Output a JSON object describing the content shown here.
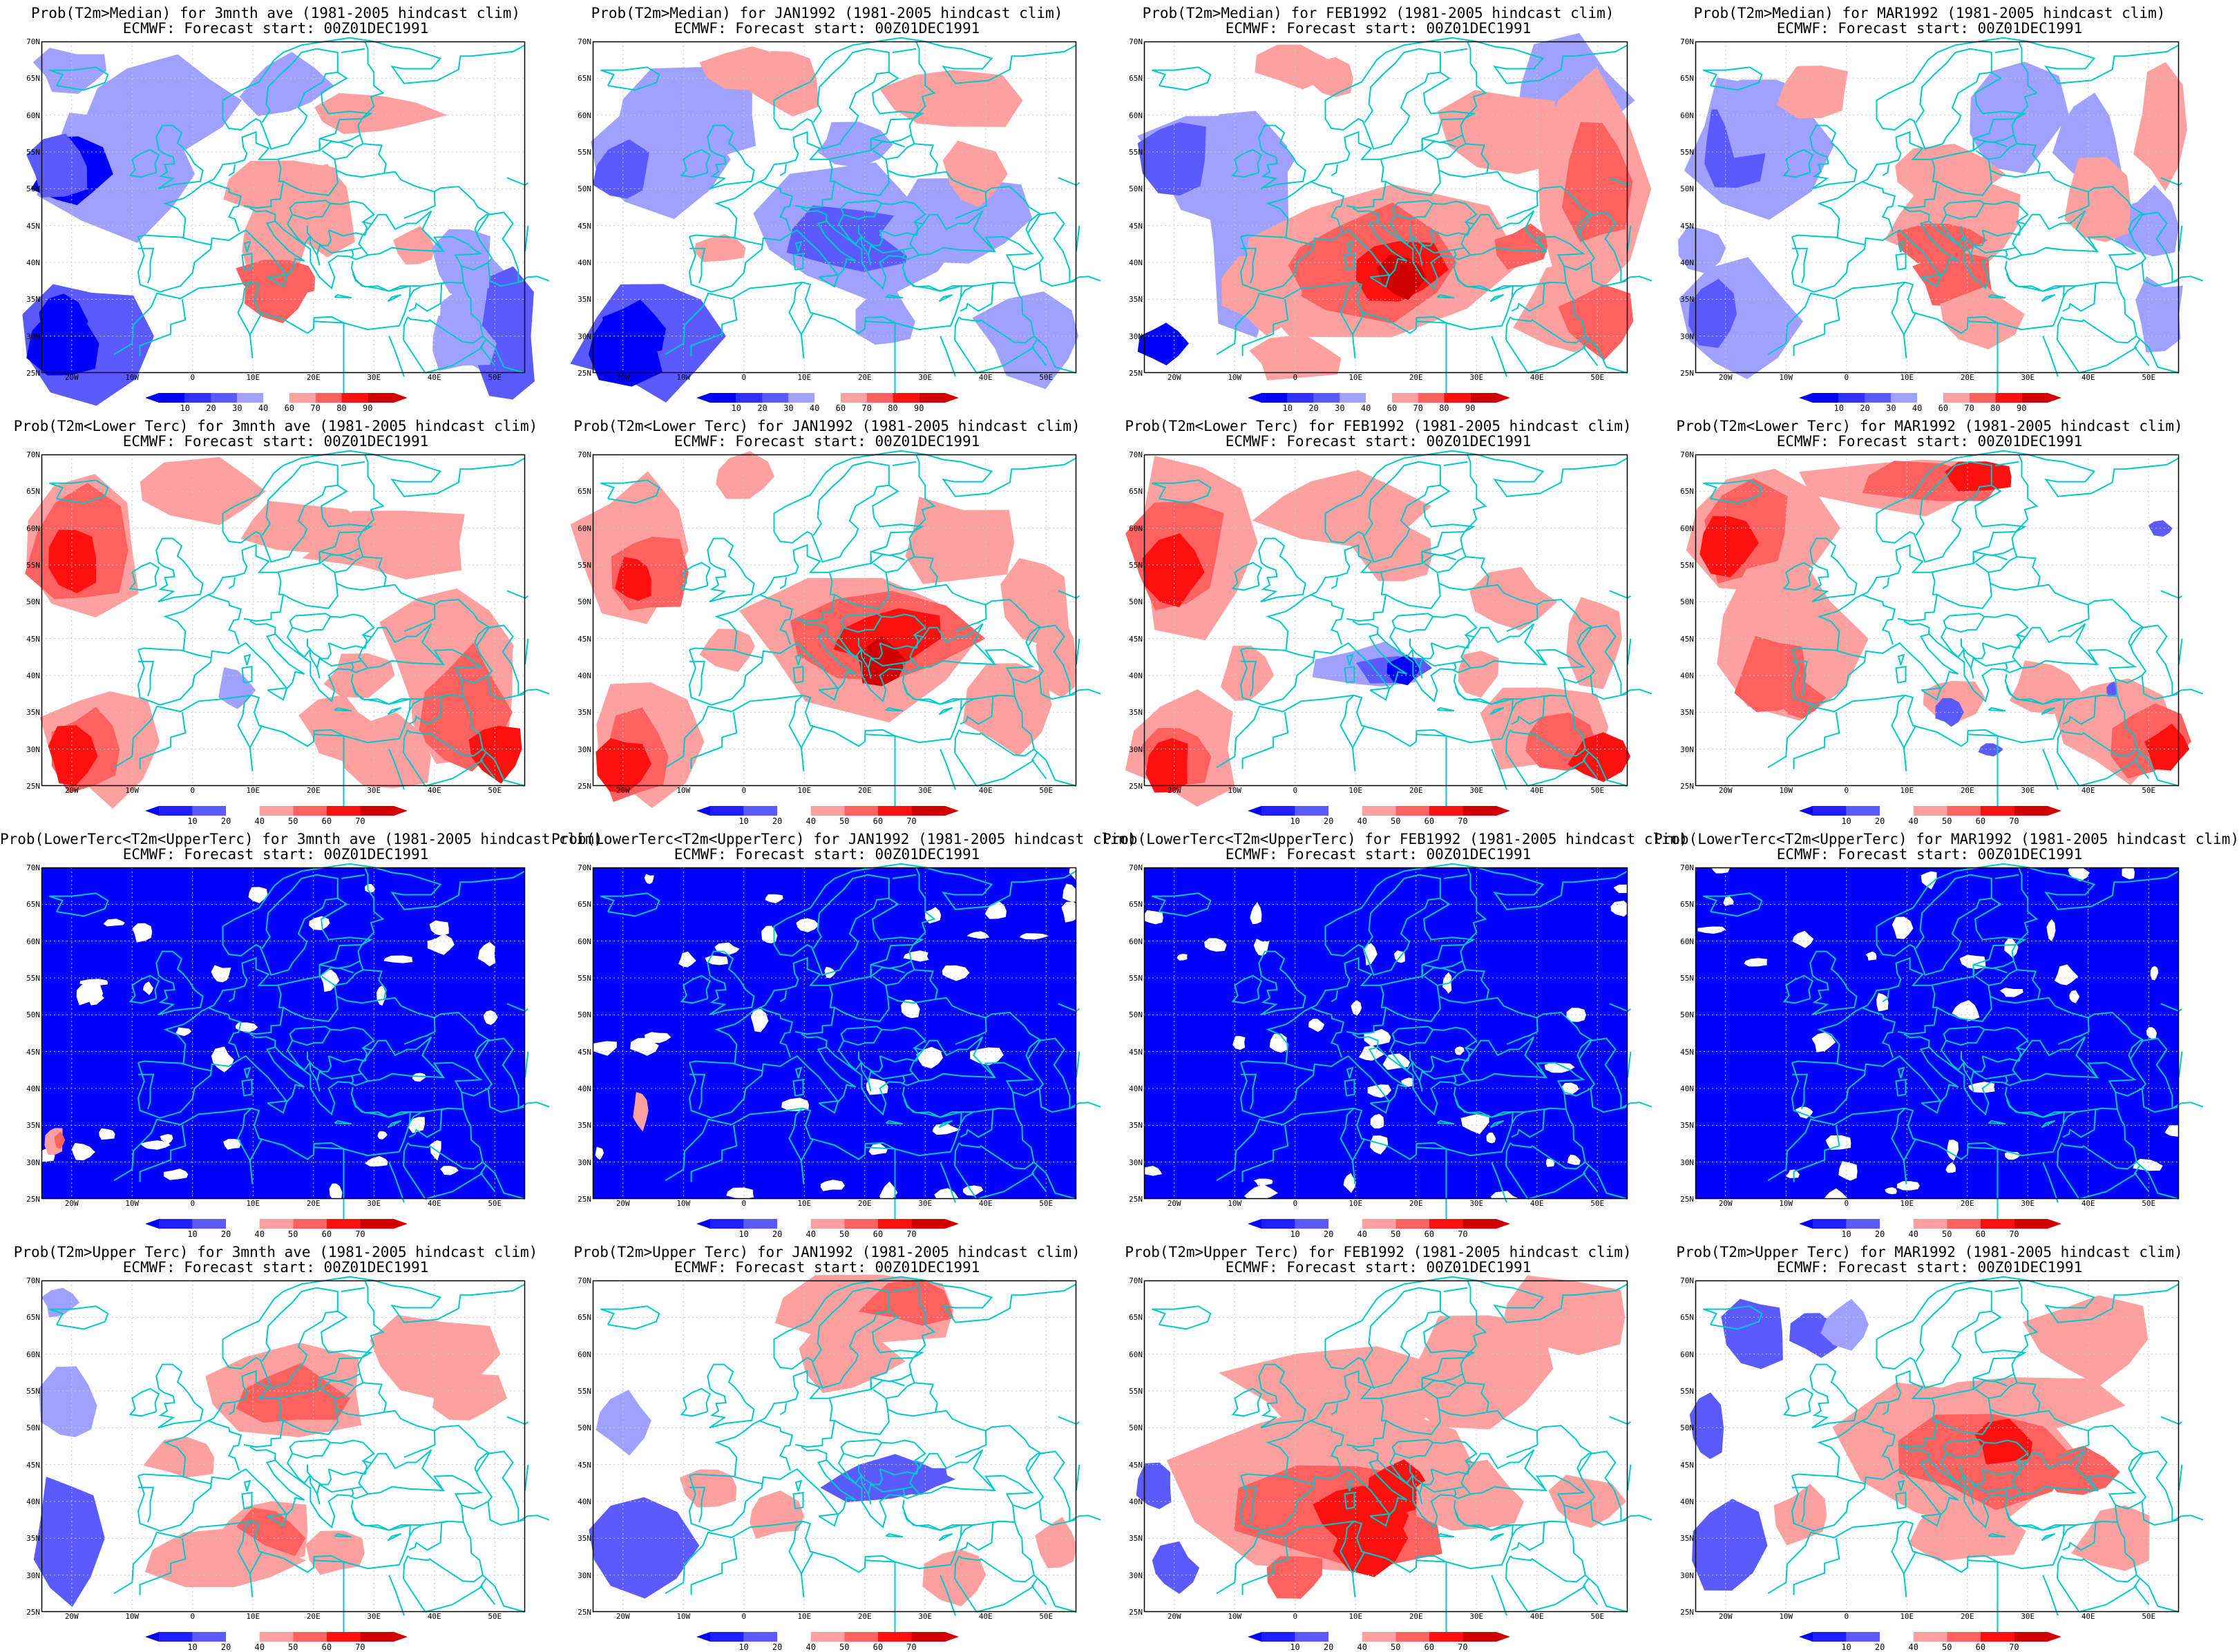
{
  "panels": [
    {
      "row": 0,
      "col": 0,
      "title": "Prob(T2m>Median) for 3mnth ave (1981-2005 hindcast clim)",
      "subtitle": "ECMWF: Forecast start: 00Z01DEC1991",
      "scheme": "median"
    },
    {
      "row": 0,
      "col": 1,
      "title": "Prob(T2m>Median) for JAN1992 (1981-2005 hindcast clim)",
      "subtitle": "ECMWF: Forecast start: 00Z01DEC1991",
      "scheme": "median"
    },
    {
      "row": 0,
      "col": 2,
      "title": "Prob(T2m>Median) for FEB1992 (1981-2005 hindcast clim)",
      "subtitle": "ECMWF: Forecast start: 00Z01DEC1991",
      "scheme": "median"
    },
    {
      "row": 0,
      "col": 3,
      "title": "Prob(T2m>Median) for MAR1992 (1981-2005 hindcast clim)",
      "subtitle": "ECMWF: Forecast start: 00Z01DEC1991",
      "scheme": "median"
    },
    {
      "row": 1,
      "col": 0,
      "title": "Prob(T2m<Lower Terc) for 3mnth ave (1981-2005 hindcast clim)",
      "subtitle": "ECMWF: Forecast start: 00Z01DEC1991",
      "scheme": "lower"
    },
    {
      "row": 1,
      "col": 1,
      "title": "Prob(T2m<Lower Terc) for JAN1992 (1981-2005 hindcast clim)",
      "subtitle": "ECMWF: Forecast start: 00Z01DEC1991",
      "scheme": "lower"
    },
    {
      "row": 1,
      "col": 2,
      "title": "Prob(T2m<Lower Terc) for FEB1992 (1981-2005 hindcast clim)",
      "subtitle": "ECMWF: Forecast start: 00Z01DEC1991",
      "scheme": "lower"
    },
    {
      "row": 1,
      "col": 3,
      "title": "Prob(T2m<Lower Terc) for MAR1992 (1981-2005 hindcast clim)",
      "subtitle": "ECMWF: Forecast start: 00Z01DEC1991",
      "scheme": "lower"
    },
    {
      "row": 2,
      "col": 0,
      "title": "Prob(LowerTerc<T2m<UpperTerc) for 3mnth ave (1981-2005 hindcast clim)",
      "subtitle": "ECMWF: Forecast start: 00Z01DEC1991",
      "scheme": "middle"
    },
    {
      "row": 2,
      "col": 1,
      "title": "Prob(LowerTerc<T2m<UpperTerc) for JAN1992 (1981-2005 hindcast clim)",
      "subtitle": "ECMWF: Forecast start: 00Z01DEC1991",
      "scheme": "middle"
    },
    {
      "row": 2,
      "col": 2,
      "title": "Prob(LowerTerc<T2m<UpperTerc) for FEB1992 (1981-2005 hindcast clim)",
      "subtitle": "ECMWF: Forecast start: 00Z01DEC1991",
      "scheme": "middle"
    },
    {
      "row": 2,
      "col": 3,
      "title": "Prob(LowerTerc<T2m<UpperTerc) for MAR1992 (1981-2005 hindcast clim)",
      "subtitle": "ECMWF: Forecast start: 00Z01DEC1991",
      "scheme": "middle"
    },
    {
      "row": 3,
      "col": 0,
      "title": "Prob(T2m>Upper Terc) for 3mnth ave (1981-2005 hindcast clim)",
      "subtitle": "ECMWF: Forecast start: 00Z01DEC1991",
      "scheme": "upper"
    },
    {
      "row": 3,
      "col": 1,
      "title": "Prob(T2m>Upper Terc) for JAN1992 (1981-2005 hindcast clim)",
      "subtitle": "ECMWF: Forecast start: 00Z01DEC1991",
      "scheme": "upper"
    },
    {
      "row": 3,
      "col": 2,
      "title": "Prob(T2m>Upper Terc) for FEB1992 (1981-2005 hindcast clim)",
      "subtitle": "ECMWF: Forecast start: 00Z01DEC1991",
      "scheme": "upper"
    },
    {
      "row": 3,
      "col": 3,
      "title": "Prob(T2m>Upper Terc) for MAR1992 (1981-2005 hindcast clim)",
      "subtitle": "ECMWF: Forecast start: 00Z01DEC1991",
      "scheme": "upper"
    }
  ],
  "lat_labels": [
    "70N",
    "65N",
    "60N",
    "55N",
    "50N",
    "45N",
    "40N",
    "35N",
    "30N",
    "25N"
  ],
  "lon_labels": [
    "20W",
    "10W",
    "0",
    "10E",
    "20E",
    "30E",
    "40E",
    "50E"
  ],
  "colorbar_median": [
    "10",
    "20",
    "30",
    "40",
    "60",
    "70",
    "80",
    "90"
  ],
  "colorbar_tercile": [
    "10",
    "20",
    "40",
    "50",
    "60",
    "70"
  ],
  "colors": {
    "coast": "#00c8c8",
    "blue_strong": "#0000ff",
    "blue_mid": "#5a5aff",
    "blue_light": "#a0a0ff",
    "red_light": "#ffa0a0",
    "red_mid": "#ff6060",
    "red_strong": "#ff1010",
    "red_dark": "#d00000"
  }
}
